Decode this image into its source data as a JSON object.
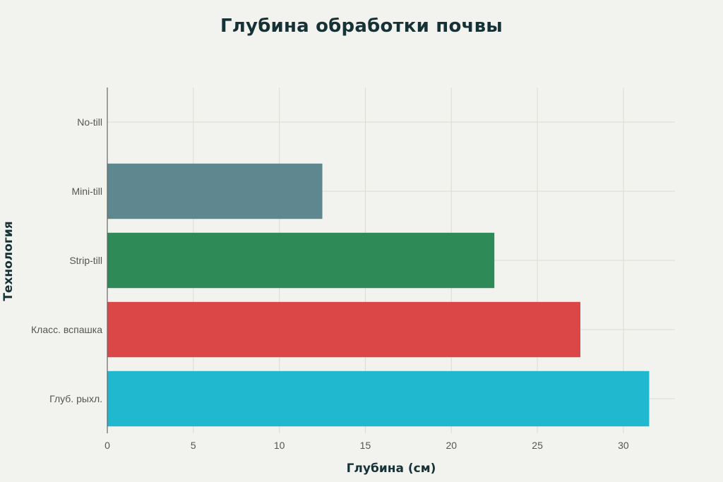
{
  "chart_data": {
    "type": "bar",
    "orientation": "horizontal",
    "title": "Глубина обработки почвы",
    "xlabel": "Глубина (см)",
    "ylabel": "Технология",
    "categories": [
      "No-till",
      "Mini-till",
      "Strip-till",
      "Класс. вспашка",
      "Глуб. рыхл."
    ],
    "values": [
      0,
      12.5,
      22.5,
      27.5,
      31.5
    ],
    "colors": [
      "#1f4e5c",
      "#5f8790",
      "#2e8b57",
      "#db4646",
      "#20b8cf"
    ],
    "xlim": [
      0,
      33
    ],
    "xticks": [
      0,
      5,
      10,
      15,
      20,
      25,
      30
    ],
    "grid": true,
    "legend": "none"
  }
}
